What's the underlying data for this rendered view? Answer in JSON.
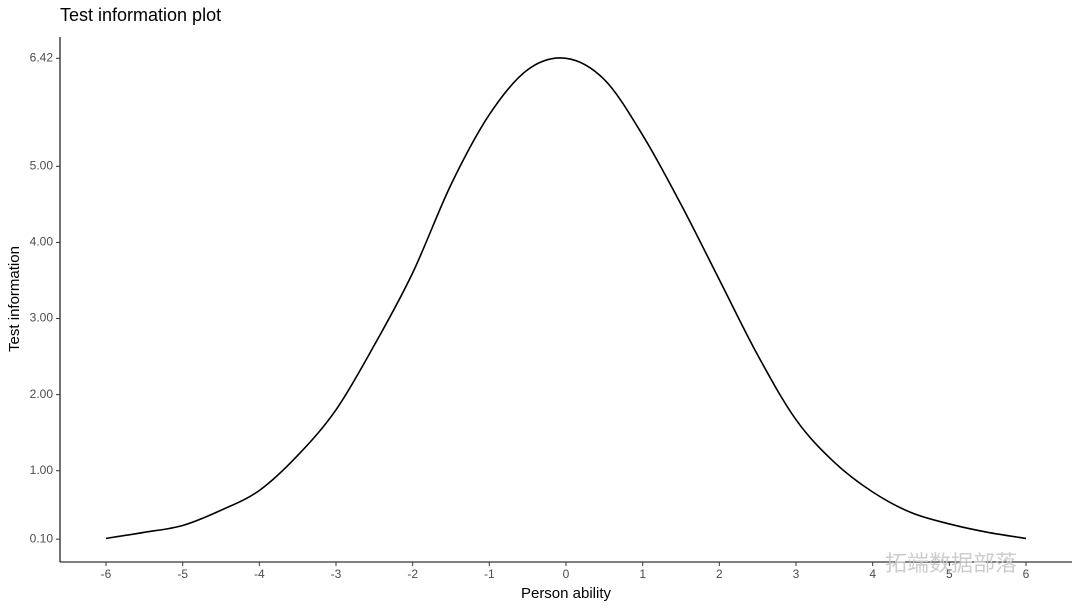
{
  "chart_data": {
    "type": "line",
    "title": "Test information plot",
    "x_label": "Person ability",
    "y_label": "Test information",
    "watermark": "拓端数据部落",
    "x": [
      -6,
      -5.5,
      -5,
      -4.5,
      -4,
      -3.5,
      -3,
      -2.5,
      -2,
      -1.5,
      -1,
      -0.5,
      0,
      0.5,
      1,
      1.5,
      2,
      2.5,
      3,
      3.5,
      4,
      4.5,
      5,
      5.5,
      6
    ],
    "series": [
      {
        "name": "Test information",
        "color": "#000000",
        "values": [
          0.11,
          0.19,
          0.28,
          0.48,
          0.74,
          1.2,
          1.8,
          2.65,
          3.6,
          4.76,
          5.68,
          6.27,
          6.42,
          6.14,
          5.41,
          4.5,
          3.51,
          2.52,
          1.67,
          1.11,
          0.72,
          0.45,
          0.3,
          0.19,
          0.11
        ]
      }
    ],
    "xlim": [
      -6.6,
      6.6
    ],
    "ylim": [
      -0.2,
      6.7
    ],
    "xticks": [
      -6,
      -5,
      -4,
      -3,
      -2,
      -1,
      0,
      1,
      2,
      3,
      4,
      5,
      6
    ],
    "yticks": [
      {
        "value": 0.1,
        "label": "0.10"
      },
      {
        "value": 1,
        "label": "1.00"
      },
      {
        "value": 2,
        "label": "2.00"
      },
      {
        "value": 3,
        "label": "3.00"
      },
      {
        "value": 4,
        "label": "4.00"
      },
      {
        "value": 5,
        "label": "5.00"
      },
      {
        "value": 6.42,
        "label": "6.42"
      }
    ],
    "grid": false
  }
}
